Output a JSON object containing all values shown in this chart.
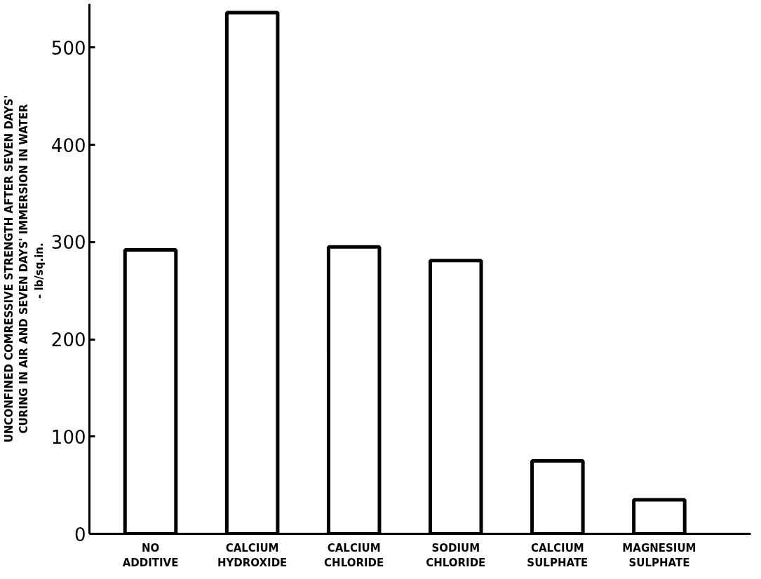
{
  "chart_data": {
    "type": "bar",
    "ylabel": "UNCONFINED COMRESSIVE STRENGTH AFTER SEVEN DAYS' CURING IN AIR AND SEVEN DAYS' IMMERSION IN WATER  -  lb/sq.in.",
    "categories": [
      "NO ADDITIVE",
      "CALCIUM HYDROXIDE",
      "CALCIUM CHLORIDE",
      "SODIUM CHLORIDE",
      "CALCIUM SULPHATE",
      "MAGNESIUM SULPHATE"
    ],
    "values": [
      292,
      536,
      295,
      281,
      75,
      35
    ],
    "color": "#000000",
    "ylim": [
      0,
      545
    ],
    "yticks": [
      0,
      100,
      200,
      300,
      400,
      500
    ],
    "grid": false
  }
}
